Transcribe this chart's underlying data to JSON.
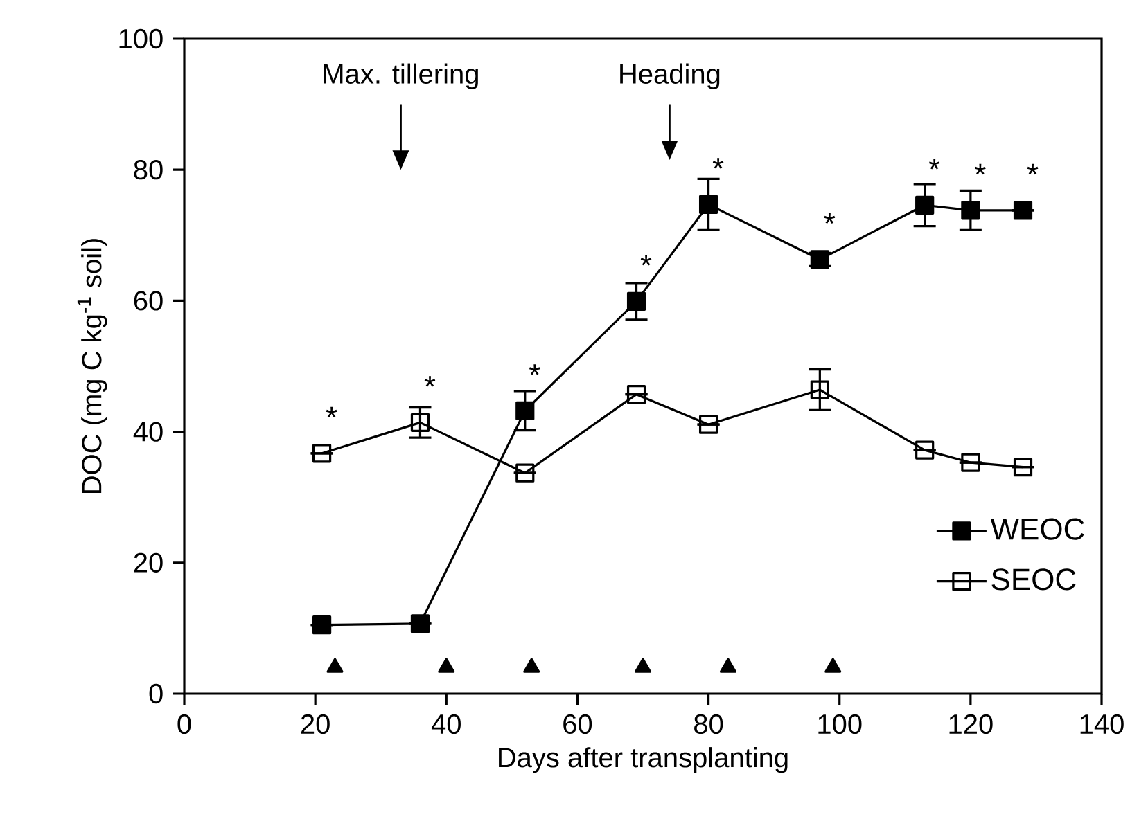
{
  "chart_data": {
    "type": "line",
    "xlabel": "Days after transplanting",
    "ylabel": "DOC (mg C kg$^{-1}$ soil)",
    "xlim": [
      0,
      140
    ],
    "xticks": [
      0,
      20,
      40,
      60,
      80,
      100,
      120,
      140
    ],
    "ylim": [
      0,
      100
    ],
    "yticks": [
      0,
      20,
      40,
      60,
      80,
      100
    ],
    "grid": false,
    "legend": "right",
    "line_style": "solid",
    "series": [
      {
        "name": "WEOC",
        "color": "#000000",
        "marker": "square",
        "x": [
          21,
          36,
          52,
          69,
          80,
          97,
          113,
          120,
          128
        ],
        "values": [
          10.5,
          10.7,
          43.2,
          59.9,
          74.7,
          66.3,
          74.6,
          73.8,
          73.8
        ],
        "errors": [
          null,
          null,
          3,
          2.8,
          3.9,
          1,
          3.2,
          3,
          null
        ]
      },
      {
        "name": "SEOC",
        "color": "#000000",
        "marker": "square",
        "x": [
          21,
          36,
          52,
          69,
          80,
          97,
          113,
          120,
          128
        ],
        "values": [
          36.7,
          41.4,
          33.7,
          45.7,
          41.1,
          46.4,
          37.2,
          35.3,
          34.6
        ],
        "errors": [
          null,
          2.3,
          null,
          null,
          null,
          3.1,
          null,
          null,
          null
        ]
      },
      {
        "type": "scatter",
        "color": "#000000",
        "marker": "triangle",
        "x": [
          23,
          40,
          53,
          70,
          83,
          99
        ],
        "values": [
          4,
          4,
          4,
          4,
          4,
          4
        ]
      }
    ],
    "annotations": [
      "Max. tillering",
      "Heading",
      {
        "text": "*",
        "x": 21,
        "y": 36.7
      },
      {
        "text": "*",
        "x": 36,
        "y": 41.4
      },
      {
        "text": "*",
        "x": 52,
        "y": 43.2
      },
      {
        "text": "*",
        "x": 69,
        "y": 59.9
      },
      {
        "text": "*",
        "x": 80,
        "y": 74.7
      },
      {
        "text": "*",
        "x": 97,
        "y": 66.3
      },
      {
        "text": "*",
        "x": 113,
        "y": 74.6
      },
      {
        "text": "*",
        "x": 120,
        "y": 73.8
      },
      {
        "text": "*",
        "x": 128,
        "y": 73.8
      }
    ]
  }
}
